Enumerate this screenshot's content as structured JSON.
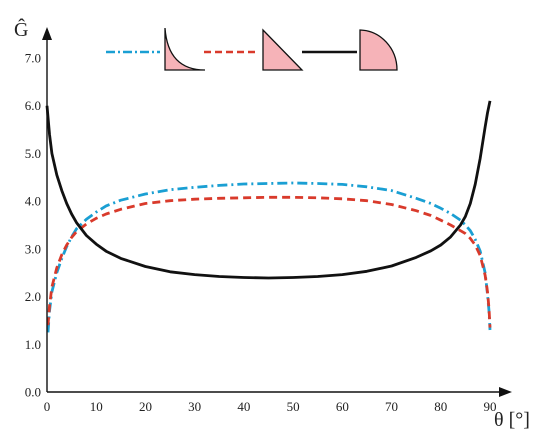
{
  "chart_data": {
    "type": "line",
    "xlabel": "θ [°]",
    "ylabel": "Ĝ",
    "xlim": [
      0,
      92
    ],
    "ylim": [
      0,
      7.5
    ],
    "xticks": [
      "0",
      "10",
      "20",
      "30",
      "40",
      "50",
      "60",
      "70",
      "80",
      "90"
    ],
    "yticks": [
      "0.0",
      "1.0",
      "2.0",
      "3.0",
      "4.0",
      "5.0",
      "6.0",
      "7.0"
    ],
    "grid": false,
    "legend_position": "top",
    "series": [
      {
        "key": "concave-profile",
        "color": "#1a9fd3",
        "dash": "dashdot",
        "legend_icon": "concave-quarter-fillet-icon",
        "x": [
          0.2,
          0.5,
          1,
          2,
          3,
          4,
          5,
          6,
          8,
          10,
          12,
          15,
          20,
          25,
          30,
          35,
          40,
          45,
          50,
          55,
          60,
          65,
          70,
          75,
          78,
          80,
          82,
          84,
          85,
          86,
          87,
          88,
          89,
          89.5,
          89.8,
          90
        ],
        "y": [
          1.25,
          1.7,
          2.1,
          2.5,
          2.8,
          3.05,
          3.25,
          3.42,
          3.62,
          3.77,
          3.9,
          4.02,
          4.15,
          4.24,
          4.29,
          4.33,
          4.36,
          4.37,
          4.38,
          4.37,
          4.35,
          4.3,
          4.22,
          4.06,
          3.95,
          3.85,
          3.74,
          3.6,
          3.5,
          3.38,
          3.2,
          2.95,
          2.5,
          2.05,
          1.7,
          1.3
        ]
      },
      {
        "key": "straight-profile",
        "color": "#d93a2b",
        "dash": "dashed",
        "legend_icon": "straight-triangle-icon",
        "x": [
          0.2,
          0.5,
          1,
          2,
          3,
          4,
          5,
          6,
          8,
          10,
          12,
          15,
          20,
          25,
          30,
          35,
          40,
          45,
          50,
          55,
          60,
          65,
          70,
          75,
          78,
          80,
          82,
          84,
          85,
          86,
          87,
          88,
          89,
          89.5,
          89.8,
          90
        ],
        "y": [
          1.4,
          1.8,
          2.2,
          2.6,
          2.88,
          3.08,
          3.24,
          3.36,
          3.52,
          3.64,
          3.73,
          3.83,
          3.95,
          4.01,
          4.04,
          4.06,
          4.07,
          4.08,
          4.08,
          4.07,
          4.05,
          4.01,
          3.93,
          3.8,
          3.7,
          3.6,
          3.5,
          3.38,
          3.32,
          3.22,
          3.08,
          2.86,
          2.45,
          2.1,
          1.75,
          1.35
        ]
      },
      {
        "key": "convex-profile",
        "color": "#111111",
        "dash": "solid",
        "legend_icon": "convex-quarter-round-icon",
        "x": [
          0,
          0.5,
          1,
          2,
          3,
          4,
          5,
          6,
          8,
          10,
          12,
          15,
          20,
          25,
          30,
          35,
          40,
          45,
          50,
          55,
          60,
          65,
          70,
          75,
          78,
          80,
          82,
          84,
          85,
          86,
          87,
          88,
          89,
          89.5,
          90
        ],
        "y": [
          6.0,
          5.4,
          5.0,
          4.55,
          4.22,
          3.95,
          3.73,
          3.55,
          3.28,
          3.1,
          2.95,
          2.8,
          2.63,
          2.52,
          2.46,
          2.42,
          2.4,
          2.39,
          2.4,
          2.42,
          2.46,
          2.53,
          2.64,
          2.82,
          2.96,
          3.08,
          3.25,
          3.5,
          3.68,
          3.95,
          4.35,
          4.9,
          5.55,
          5.85,
          6.1
        ]
      }
    ]
  }
}
